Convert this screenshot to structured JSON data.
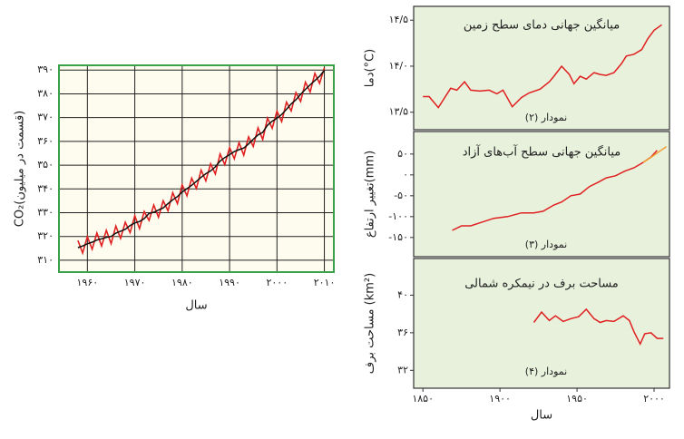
{
  "chart_data": [
    {
      "type": "line",
      "x_label": "سال",
      "y_label": "CO₂(قسمت در میلیون)",
      "grid": true,
      "frame_color": "#3aa04a",
      "background": "#fdfcee",
      "xlim": [
        1954,
        2012
      ],
      "ylim": [
        305,
        392
      ],
      "xticks": [
        {
          "value": 1960,
          "label": "۱۹۶۰"
        },
        {
          "value": 1970,
          "label": "۱۹۷۰"
        },
        {
          "value": 1980,
          "label": "۱۹۸۰"
        },
        {
          "value": 1990,
          "label": "۱۹۹۰"
        },
        {
          "value": 2000,
          "label": "۲۰۰۰"
        },
        {
          "value": 2010,
          "label": "۲۰۱۰"
        }
      ],
      "yticks": [
        {
          "value": 310,
          "label": "۳۱۰"
        },
        {
          "value": 320,
          "label": "۳۲۰"
        },
        {
          "value": 330,
          "label": "۳۳۰"
        },
        {
          "value": 340,
          "label": "۳۴۰"
        },
        {
          "value": 350,
          "label": "۳۵۰"
        },
        {
          "value": 360,
          "label": "۳۶۰"
        },
        {
          "value": 370,
          "label": "۳۷۰"
        },
        {
          "value": 380,
          "label": "۳۸۰"
        },
        {
          "value": 390,
          "label": "۳۹۰"
        }
      ],
      "x": [
        1958,
        1959,
        1960,
        1961,
        1962,
        1963,
        1964,
        1965,
        1966,
        1967,
        1968,
        1969,
        1970,
        1971,
        1972,
        1973,
        1974,
        1975,
        1976,
        1977,
        1978,
        1979,
        1980,
        1981,
        1982,
        1983,
        1984,
        1985,
        1986,
        1987,
        1988,
        1989,
        1990,
        1991,
        1992,
        1993,
        1994,
        1995,
        1996,
        1997,
        1998,
        1999,
        2000,
        2001,
        2002,
        2003,
        2004,
        2005,
        2006,
        2007,
        2008,
        2009,
        2010
      ],
      "series": [
        {
          "color": "#e02020",
          "values": [
            318.3,
            313.0,
            319.9,
            314.6,
            321.5,
            316.0,
            322.6,
            317.0,
            324.4,
            319.2,
            326.0,
            321.6,
            328.7,
            323.3,
            330.5,
            326.7,
            333.2,
            328.1,
            335.0,
            330.8,
            338.4,
            333.8,
            341.7,
            337.1,
            344.5,
            340.2,
            347.9,
            343.4,
            350.6,
            346.3,
            354.7,
            350.2,
            357.4,
            352.7,
            359.5,
            354.2,
            361.9,
            357.9,
            365.7,
            360.8,
            369.8,
            365.5,
            372.7,
            368.3,
            376.5,
            372.8,
            380.5,
            376.8,
            384.9,
            380.8,
            388.6,
            384.4,
            391.0
          ]
        },
        {
          "color": "#111111",
          "values": [
            315.3,
            316.0,
            316.9,
            317.6,
            318.5,
            319.0,
            319.6,
            320.0,
            321.4,
            322.2,
            323.0,
            324.6,
            325.7,
            326.3,
            327.5,
            329.7,
            330.2,
            331.1,
            332.0,
            333.8,
            335.4,
            336.8,
            338.7,
            340.1,
            341.5,
            343.2,
            344.9,
            346.4,
            347.6,
            349.3,
            351.7,
            353.2,
            354.4,
            355.7,
            356.5,
            357.2,
            358.9,
            360.9,
            362.7,
            363.8,
            366.8,
            368.5,
            369.7,
            371.3,
            373.5,
            375.8,
            377.5,
            379.8,
            381.9,
            383.8,
            385.6,
            387.4,
            389.9
          ]
        }
      ]
    },
    {
      "type": "line",
      "title": "میانگین جهانی دمای سطح زمین",
      "annotation": "نمودار (۲)",
      "y_label": "دما(°C)",
      "grid": false,
      "frame_color": "#333333",
      "background": "#e8f1dc",
      "xlim": [
        1844,
        2010
      ],
      "ylim": [
        13.31,
        14.65
      ],
      "yticks": [
        {
          "value": 13.5,
          "label": "۱۳/۵"
        },
        {
          "value": 14.0,
          "label": "۱۴/۰"
        },
        {
          "value": 14.5,
          "label": "۱۴/۵"
        }
      ],
      "series": [
        {
          "color": "#e02020",
          "x": [
            1850,
            1854,
            1860,
            1868,
            1872,
            1877,
            1881,
            1887,
            1893,
            1898,
            1902,
            1908,
            1914,
            1919,
            1926,
            1932,
            1935,
            1940,
            1945,
            1948,
            1952,
            1956,
            1961,
            1965,
            1969,
            1974,
            1979,
            1982,
            1987,
            1992,
            1996,
            2000,
            2005
          ],
          "values": [
            13.67,
            13.67,
            13.55,
            13.76,
            13.74,
            13.83,
            13.74,
            13.73,
            13.74,
            13.7,
            13.74,
            13.56,
            13.66,
            13.71,
            13.75,
            13.83,
            13.89,
            14.0,
            13.91,
            13.81,
            13.89,
            13.86,
            13.93,
            13.91,
            13.9,
            13.93,
            14.03,
            14.11,
            14.13,
            14.18,
            14.3,
            14.39,
            14.45
          ]
        }
      ]
    },
    {
      "type": "line",
      "title": "میانگین جهانی سطح آب‌های آزاد",
      "annotation": "نمودار (۳)",
      "y_label": "تغییر ارتفاع(mm)",
      "grid": false,
      "frame_color": "#333333",
      "background": "#e8f1dc",
      "xlim": [
        1844,
        2010
      ],
      "ylim": [
        -196,
        104
      ],
      "yticks": [
        {
          "value": -150,
          "label": "-۱۵۰"
        },
        {
          "value": -100,
          "label": "-۱۰۰"
        },
        {
          "value": -50,
          "label": "-۵۰"
        },
        {
          "value": 0,
          "label": "۰"
        },
        {
          "value": 50,
          "label": "۵۰"
        }
      ],
      "series": [
        {
          "color": "#e02020",
          "x": [
            1869,
            1875,
            1881,
            1887,
            1896,
            1905,
            1914,
            1922,
            1928,
            1935,
            1940,
            1946,
            1952,
            1958,
            1964,
            1969,
            1975,
            1981,
            1987,
            1993,
            1998,
            2002
          ],
          "values": [
            -133,
            -122,
            -122,
            -115,
            -104,
            -100,
            -91,
            -91,
            -87,
            -72,
            -65,
            -50,
            -46,
            -28,
            -17,
            -7,
            -2,
            9,
            17,
            30,
            43,
            59
          ]
        },
        {
          "color": "#f0a030",
          "x": [
            1993,
            1998,
            2003,
            2008
          ],
          "values": [
            30,
            42,
            55,
            68
          ]
        }
      ]
    },
    {
      "type": "line",
      "title": "مساحت برف در نیمکره شمالی",
      "annotation": "نمودار (۴)",
      "y_label": "مساحت برف (km²)",
      "x_label": "سال",
      "grid": false,
      "frame_color": "#333333",
      "background": "#e8f1dc",
      "xlim": [
        1844,
        2010
      ],
      "ylim": [
        30.1,
        43.9
      ],
      "xticks": [
        {
          "value": 1850,
          "label": "۱۸۵۰"
        },
        {
          "value": 1900,
          "label": "۱۹۰۰"
        },
        {
          "value": 1950,
          "label": "۱۹۵۰"
        },
        {
          "value": 2000,
          "label": "۲۰۰۰"
        }
      ],
      "yticks": [
        {
          "value": 32,
          "label": "۳۲"
        },
        {
          "value": 36,
          "label": "۳۶"
        },
        {
          "value": 40,
          "label": "۴۰"
        }
      ],
      "series": [
        {
          "color": "#e02020",
          "x": [
            1922,
            1927,
            1932,
            1936,
            1941,
            1946,
            1951,
            1956,
            1961,
            1965,
            1969,
            1974,
            1980,
            1984,
            1987,
            1991,
            1994,
            1998,
            2002,
            2006
          ],
          "values": [
            37.1,
            38.2,
            37.3,
            37.8,
            37.2,
            37.5,
            37.7,
            38.5,
            37.5,
            37.1,
            37.3,
            37.2,
            37.8,
            37.3,
            36.1,
            34.8,
            35.9,
            36.0,
            35.4,
            35.4
          ]
        }
      ]
    }
  ]
}
